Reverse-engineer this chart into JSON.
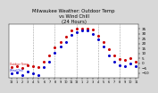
{
  "title": "Milwaukee Weather: Outdoor Temp\nvs Wind Chill\n(24 Hours)",
  "title_fontsize": 3.8,
  "background_color": "#d8d8d8",
  "plot_bg": "#ffffff",
  "temp_color": "#cc0000",
  "windchill_color": "#0000cc",
  "hours": [
    0,
    1,
    2,
    3,
    4,
    5,
    6,
    7,
    8,
    9,
    10,
    11,
    12,
    13,
    14,
    15,
    16,
    17,
    18,
    19,
    20,
    21,
    22,
    23
  ],
  "temp": [
    -4,
    -3,
    -5,
    -2,
    -3,
    -4,
    2,
    8,
    16,
    22,
    27,
    33,
    35,
    35,
    35,
    34,
    28,
    22,
    14,
    8,
    4,
    3,
    5,
    2
  ],
  "windchill": [
    -10,
    -9,
    -12,
    -8,
    -10,
    -12,
    -4,
    2,
    11,
    17,
    22,
    29,
    32,
    33,
    33,
    30,
    24,
    17,
    8,
    2,
    -2,
    -3,
    0,
    -3
  ],
  "ylim": [
    -15,
    40
  ],
  "ytick_fontsize": 3.0,
  "xtick_fontsize": 2.5,
  "grid_color": "#888888",
  "yticks": [
    -10,
    -5,
    0,
    5,
    10,
    15,
    20,
    25,
    30,
    35
  ],
  "vgrid_positions": [
    4,
    8,
    12,
    16,
    20
  ],
  "marker_size": 1.2
}
